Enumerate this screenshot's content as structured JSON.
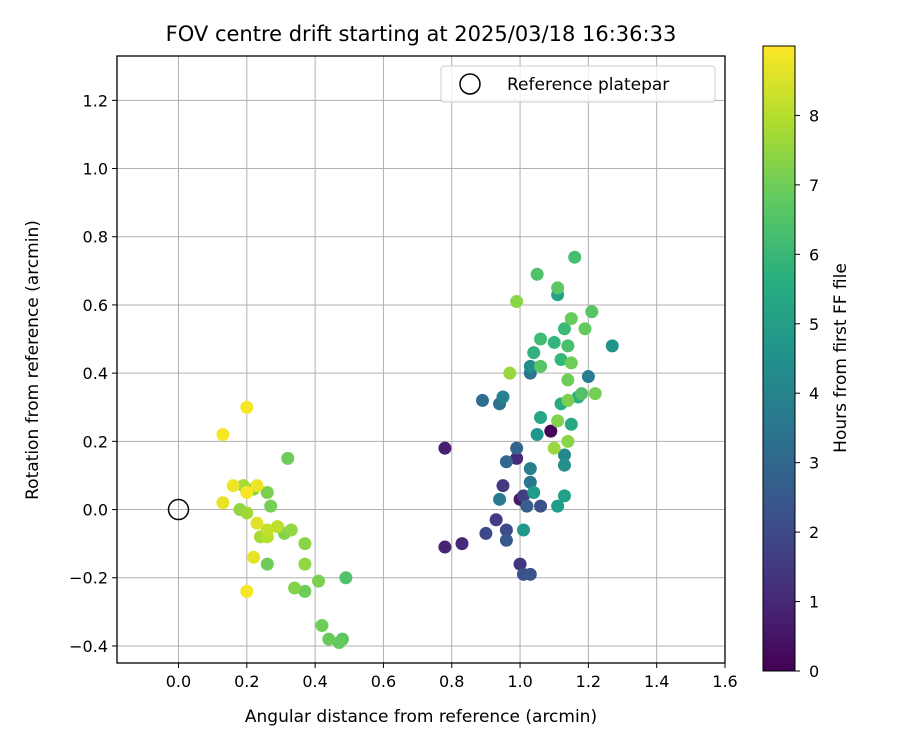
{
  "chart_data": {
    "type": "scatter",
    "title": "FOV centre drift starting at 2025/03/18 16:36:33",
    "xlabel": "Angular distance from reference (arcmin)",
    "ylabel": "Rotation from reference (arcmin)",
    "xlim": [
      -0.18,
      1.6
    ],
    "ylim": [
      -0.45,
      1.33
    ],
    "xticks": [
      0.0,
      0.2,
      0.4,
      0.6,
      0.8,
      1.0,
      1.2,
      1.4,
      1.6
    ],
    "xtick_labels": [
      "0.0",
      "0.2",
      "0.4",
      "0.6",
      "0.8",
      "1.0",
      "1.2",
      "1.4",
      "1.6"
    ],
    "yticks": [
      -0.4,
      -0.2,
      0.0,
      0.2,
      0.4,
      0.6,
      0.8,
      1.0,
      1.2
    ],
    "ytick_labels": [
      "−0.4",
      "−0.2",
      "0.0",
      "0.2",
      "0.4",
      "0.6",
      "0.8",
      "1.0",
      "1.2"
    ],
    "grid": true,
    "legend": {
      "position": "top-right",
      "entries": [
        {
          "label": "Reference platepar",
          "marker": "open-circle"
        }
      ]
    },
    "reference": {
      "x": 0.0,
      "y": 0.0
    },
    "colorbar": {
      "label": "Hours from first FF file",
      "range": [
        0,
        9.0
      ],
      "ticks": [
        0,
        1,
        2,
        3,
        4,
        5,
        6,
        7,
        8
      ],
      "tick_labels": [
        "0",
        "1",
        "2",
        "3",
        "4",
        "5",
        "6",
        "7",
        "8"
      ],
      "colormap": "viridis"
    },
    "points": [
      {
        "x": 1.09,
        "y": 0.23,
        "t": 0.1
      },
      {
        "x": 1.0,
        "y": 0.03,
        "t": 0.6
      },
      {
        "x": 0.78,
        "y": 0.18,
        "t": 0.8
      },
      {
        "x": 0.78,
        "y": -0.11,
        "t": 0.9
      },
      {
        "x": 0.83,
        "y": -0.1,
        "t": 1.0
      },
      {
        "x": 0.99,
        "y": 0.15,
        "t": 1.1
      },
      {
        "x": 1.0,
        "y": -0.16,
        "t": 1.4
      },
      {
        "x": 0.95,
        "y": 0.07,
        "t": 1.5
      },
      {
        "x": 0.93,
        "y": -0.03,
        "t": 1.6
      },
      {
        "x": 1.01,
        "y": 0.04,
        "t": 1.7
      },
      {
        "x": 0.9,
        "y": -0.07,
        "t": 2.0
      },
      {
        "x": 0.96,
        "y": -0.06,
        "t": 2.1
      },
      {
        "x": 1.06,
        "y": 0.01,
        "t": 2.2
      },
      {
        "x": 1.01,
        "y": -0.19,
        "t": 2.3
      },
      {
        "x": 1.03,
        "y": -0.19,
        "t": 2.4
      },
      {
        "x": 0.96,
        "y": -0.09,
        "t": 2.5
      },
      {
        "x": 1.02,
        "y": 0.01,
        "t": 2.7
      },
      {
        "x": 0.99,
        "y": 0.18,
        "t": 2.9
      },
      {
        "x": 0.96,
        "y": 0.14,
        "t": 3.0
      },
      {
        "x": 0.89,
        "y": 0.32,
        "t": 3.2
      },
      {
        "x": 0.94,
        "y": 0.31,
        "t": 3.4
      },
      {
        "x": 1.03,
        "y": 0.4,
        "t": 3.5
      },
      {
        "x": 1.03,
        "y": 0.08,
        "t": 3.6
      },
      {
        "x": 0.94,
        "y": 0.03,
        "t": 3.7
      },
      {
        "x": 1.2,
        "y": 0.39,
        "t": 3.8
      },
      {
        "x": 1.03,
        "y": 0.12,
        "t": 3.9
      },
      {
        "x": 0.95,
        "y": 0.33,
        "t": 4.0
      },
      {
        "x": 1.13,
        "y": 0.16,
        "t": 4.2
      },
      {
        "x": 1.03,
        "y": 0.42,
        "t": 4.4
      },
      {
        "x": 1.13,
        "y": 0.13,
        "t": 4.5
      },
      {
        "x": 1.27,
        "y": 0.48,
        "t": 4.6
      },
      {
        "x": 1.05,
        "y": 0.22,
        "t": 4.7
      },
      {
        "x": 1.01,
        "y": -0.06,
        "t": 4.8
      },
      {
        "x": 1.04,
        "y": 0.05,
        "t": 4.9
      },
      {
        "x": 1.11,
        "y": 0.01,
        "t": 5.0
      },
      {
        "x": 1.13,
        "y": 0.04,
        "t": 5.1
      },
      {
        "x": 1.11,
        "y": 0.63,
        "t": 5.2
      },
      {
        "x": 1.06,
        "y": 0.27,
        "t": 5.3
      },
      {
        "x": 1.15,
        "y": 0.25,
        "t": 5.4
      },
      {
        "x": 1.12,
        "y": 0.31,
        "t": 5.5
      },
      {
        "x": 1.17,
        "y": 0.33,
        "t": 5.6
      },
      {
        "x": 1.04,
        "y": 0.46,
        "t": 5.8
      },
      {
        "x": 1.1,
        "y": 0.49,
        "t": 5.9
      },
      {
        "x": 1.12,
        "y": 0.44,
        "t": 6.0
      },
      {
        "x": 1.13,
        "y": 0.53,
        "t": 6.1
      },
      {
        "x": 1.06,
        "y": 0.5,
        "t": 6.2
      },
      {
        "x": 1.16,
        "y": 0.74,
        "t": 6.3
      },
      {
        "x": 1.14,
        "y": 0.48,
        "t": 6.4
      },
      {
        "x": 1.05,
        "y": 0.69,
        "t": 6.5
      },
      {
        "x": 1.21,
        "y": 0.58,
        "t": 6.6
      },
      {
        "x": 1.11,
        "y": 0.65,
        "t": 6.7
      },
      {
        "x": 1.19,
        "y": 0.53,
        "t": 6.8
      },
      {
        "x": 1.15,
        "y": 0.56,
        "t": 6.9
      },
      {
        "x": 1.15,
        "y": 0.43,
        "t": 7.0
      },
      {
        "x": 1.06,
        "y": 0.42,
        "t": 6.6
      },
      {
        "x": 1.14,
        "y": 0.38,
        "t": 7.0
      },
      {
        "x": 1.22,
        "y": 0.34,
        "t": 7.1
      },
      {
        "x": 1.18,
        "y": 0.34,
        "t": 6.5
      },
      {
        "x": 1.14,
        "y": 0.32,
        "t": 7.2
      },
      {
        "x": 1.11,
        "y": 0.26,
        "t": 7.3
      },
      {
        "x": 1.14,
        "y": 0.2,
        "t": 7.4
      },
      {
        "x": 1.1,
        "y": 0.18,
        "t": 7.6
      },
      {
        "x": 0.99,
        "y": 0.61,
        "t": 7.4
      },
      {
        "x": 0.97,
        "y": 0.4,
        "t": 7.6
      },
      {
        "x": 0.32,
        "y": 0.15,
        "t": 7.0
      },
      {
        "x": 0.49,
        "y": -0.2,
        "t": 6.5
      },
      {
        "x": 0.48,
        "y": -0.38,
        "t": 6.7
      },
      {
        "x": 0.47,
        "y": -0.39,
        "t": 6.8
      },
      {
        "x": 0.44,
        "y": -0.38,
        "t": 6.9
      },
      {
        "x": 0.42,
        "y": -0.34,
        "t": 7.0
      },
      {
        "x": 0.41,
        "y": -0.21,
        "t": 7.2
      },
      {
        "x": 0.37,
        "y": -0.24,
        "t": 7.0
      },
      {
        "x": 0.34,
        "y": -0.23,
        "t": 7.3
      },
      {
        "x": 0.37,
        "y": -0.16,
        "t": 7.5
      },
      {
        "x": 0.37,
        "y": -0.1,
        "t": 7.4
      },
      {
        "x": 0.31,
        "y": -0.07,
        "t": 7.3
      },
      {
        "x": 0.33,
        "y": -0.06,
        "t": 7.5
      },
      {
        "x": 0.26,
        "y": -0.16,
        "t": 7.0
      },
      {
        "x": 0.26,
        "y": 0.05,
        "t": 7.2
      },
      {
        "x": 0.27,
        "y": 0.01,
        "t": 7.1
      },
      {
        "x": 0.22,
        "y": 0.06,
        "t": 7.4
      },
      {
        "x": 0.19,
        "y": 0.07,
        "t": 7.8
      },
      {
        "x": 0.18,
        "y": 0.0,
        "t": 7.5
      },
      {
        "x": 0.2,
        "y": -0.01,
        "t": 7.7
      },
      {
        "x": 0.24,
        "y": -0.08,
        "t": 7.8
      },
      {
        "x": 0.26,
        "y": -0.08,
        "t": 8.0
      },
      {
        "x": 0.29,
        "y": -0.05,
        "t": 8.1
      },
      {
        "x": 0.26,
        "y": -0.06,
        "t": 8.2
      },
      {
        "x": 0.23,
        "y": -0.04,
        "t": 8.6
      },
      {
        "x": 0.22,
        "y": -0.14,
        "t": 8.7
      },
      {
        "x": 0.2,
        "y": -0.24,
        "t": 8.9
      },
      {
        "x": 0.23,
        "y": 0.07,
        "t": 8.8
      },
      {
        "x": 0.2,
        "y": 0.05,
        "t": 8.9
      },
      {
        "x": 0.16,
        "y": 0.07,
        "t": 8.8
      },
      {
        "x": 0.13,
        "y": 0.02,
        "t": 8.7
      },
      {
        "x": 0.13,
        "y": 0.22,
        "t": 8.9
      },
      {
        "x": 0.2,
        "y": 0.3,
        "t": 8.9
      }
    ]
  }
}
